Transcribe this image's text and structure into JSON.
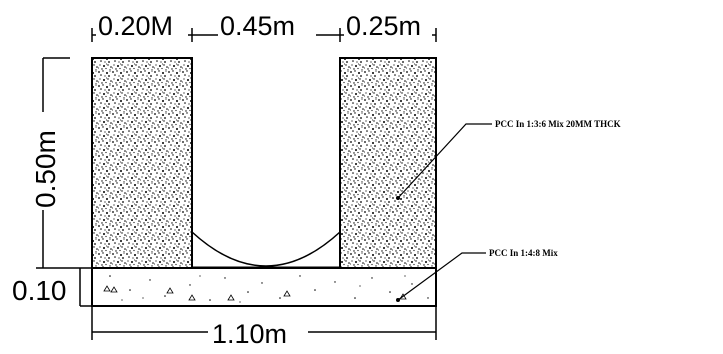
{
  "dimensions": {
    "top_left_width": "0.20M",
    "top_middle_width": "0.45m",
    "top_right_width": "0.25m",
    "wall_height": "0.50m",
    "base_thickness": "0.10",
    "total_width": "1.10m"
  },
  "annotations": {
    "wall_material": "PCC In 1:3:6 Mix 20MM THCK",
    "base_material": "PCC In 1:4:8 Mix"
  }
}
